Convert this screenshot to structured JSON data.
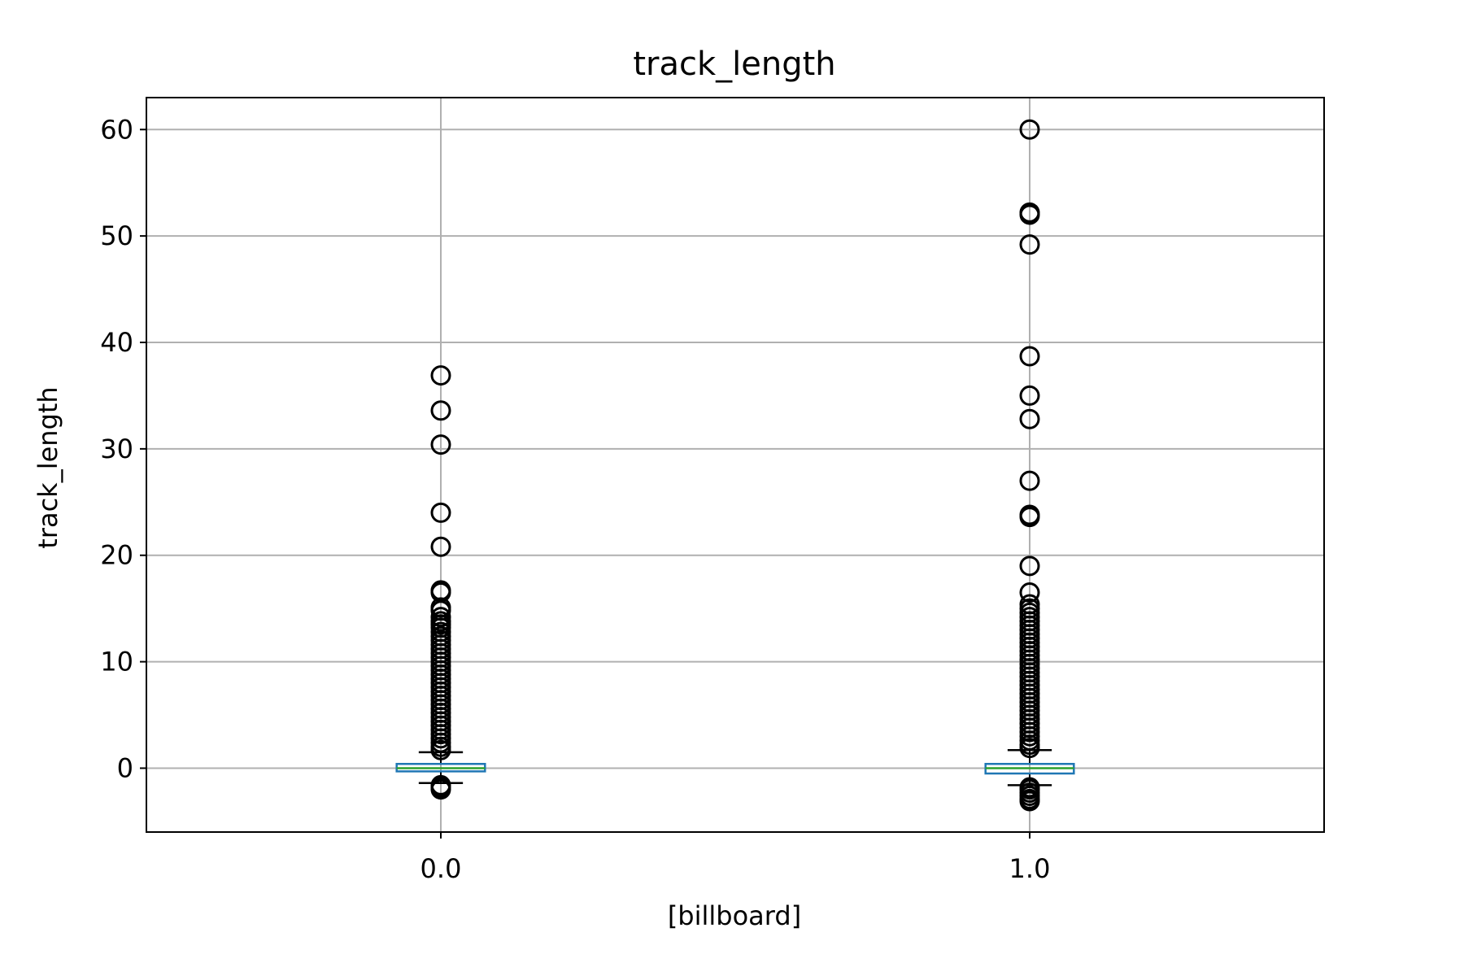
{
  "chart_data": {
    "type": "box",
    "title": "track_length",
    "xlabel": "[billboard]",
    "ylabel": "track_length",
    "categories": [
      "0.0",
      "1.0"
    ],
    "ylim": [
      -6,
      63
    ],
    "yticks": [
      0,
      10,
      20,
      30,
      40,
      50,
      60
    ],
    "grid": true,
    "colors": {
      "box": "#1f77b4",
      "median": "#2ca02c",
      "whisker": "#000000",
      "flier": "#000000",
      "grid": "#b0b0b0"
    },
    "boxes": [
      {
        "category": "0.0",
        "q1": -0.3,
        "median": 0.0,
        "q3": 0.4,
        "whisker_low": -1.4,
        "whisker_high": 1.5,
        "fliers": [
          36.9,
          33.6,
          30.4,
          24.0,
          20.8,
          16.7,
          16.5,
          15.1,
          14.8,
          14.2,
          13.8,
          13.5,
          13.2,
          12.8,
          12.4,
          12.0,
          11.6,
          11.2,
          10.8,
          10.4,
          10.0,
          9.6,
          9.2,
          8.8,
          8.4,
          8.0,
          7.6,
          7.2,
          6.8,
          6.4,
          6.0,
          5.6,
          5.2,
          4.8,
          4.4,
          4.0,
          3.6,
          3.2,
          2.8,
          2.4,
          2.0,
          1.7,
          -1.6,
          -1.8,
          -2.0
        ]
      },
      {
        "category": "1.0",
        "q1": -0.5,
        "median": 0.0,
        "q3": 0.4,
        "whisker_low": -1.6,
        "whisker_high": 1.7,
        "fliers": [
          60.0,
          52.2,
          52.0,
          49.2,
          38.7,
          35.0,
          32.8,
          27.0,
          23.8,
          23.6,
          19.0,
          16.5,
          15.4,
          15.0,
          14.6,
          14.2,
          13.8,
          13.4,
          13.0,
          12.6,
          12.2,
          11.8,
          11.4,
          11.0,
          10.6,
          10.2,
          9.8,
          9.4,
          9.0,
          8.6,
          8.2,
          7.8,
          7.4,
          7.0,
          6.6,
          6.2,
          5.8,
          5.4,
          5.0,
          4.6,
          4.2,
          3.8,
          3.4,
          3.0,
          2.6,
          2.2,
          1.9,
          -1.8,
          -2.0,
          -2.3,
          -2.6,
          -2.9,
          -3.1
        ]
      }
    ]
  }
}
